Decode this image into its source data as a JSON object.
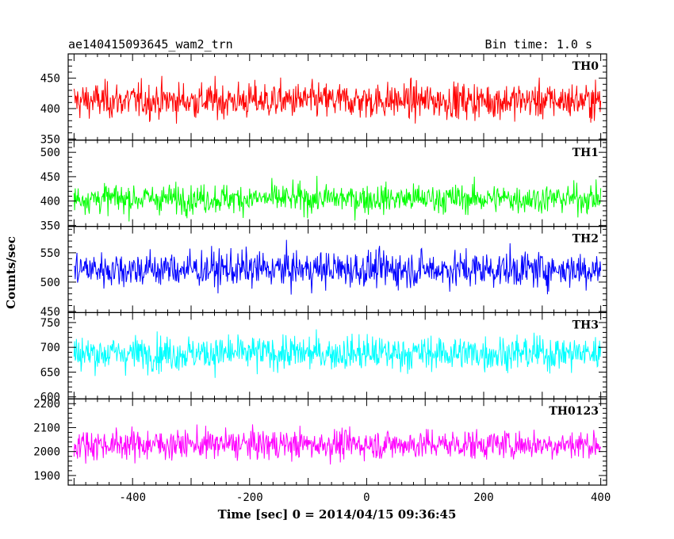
{
  "header": {
    "title": "ae140415093645_wam2_trn",
    "bin_time": "Bin time: 1.0 s"
  },
  "chart_data": {
    "type": "line",
    "xlabel": "Time [sec] 0 = 2014/04/15 09:36:45",
    "ylabel": "Counts/sec",
    "xlim": [
      -510,
      410
    ],
    "data_range": [
      -500,
      400
    ],
    "x_ticks": [
      -400,
      -200,
      0,
      200,
      400
    ],
    "grid": false,
    "panels": [
      {
        "label": "TH0",
        "color": "#ff0000",
        "ylim": [
          348,
          490
        ],
        "y_ticks": [
          350,
          400,
          450
        ],
        "mean": 413,
        "spread": 38
      },
      {
        "label": "TH1",
        "color": "#00ff00",
        "ylim": [
          348,
          525
        ],
        "y_ticks": [
          350,
          400,
          450,
          500
        ],
        "mean": 405,
        "spread": 38
      },
      {
        "label": "TH2",
        "color": "#0000ff",
        "ylim": [
          448,
          595
        ],
        "y_ticks": [
          450,
          500,
          550
        ],
        "mean": 522,
        "spread": 40
      },
      {
        "label": "TH3",
        "color": "#00ffff",
        "ylim": [
          596,
          770
        ],
        "y_ticks": [
          600,
          650,
          700,
          750
        ],
        "mean": 688,
        "spread": 45
      },
      {
        "label": "TH0123",
        "color": "#ff00ff",
        "ylim": [
          1860,
          2220
        ],
        "y_ticks": [
          1900,
          2000,
          2100,
          2200
        ],
        "mean": 2030,
        "spread": 80
      }
    ]
  }
}
